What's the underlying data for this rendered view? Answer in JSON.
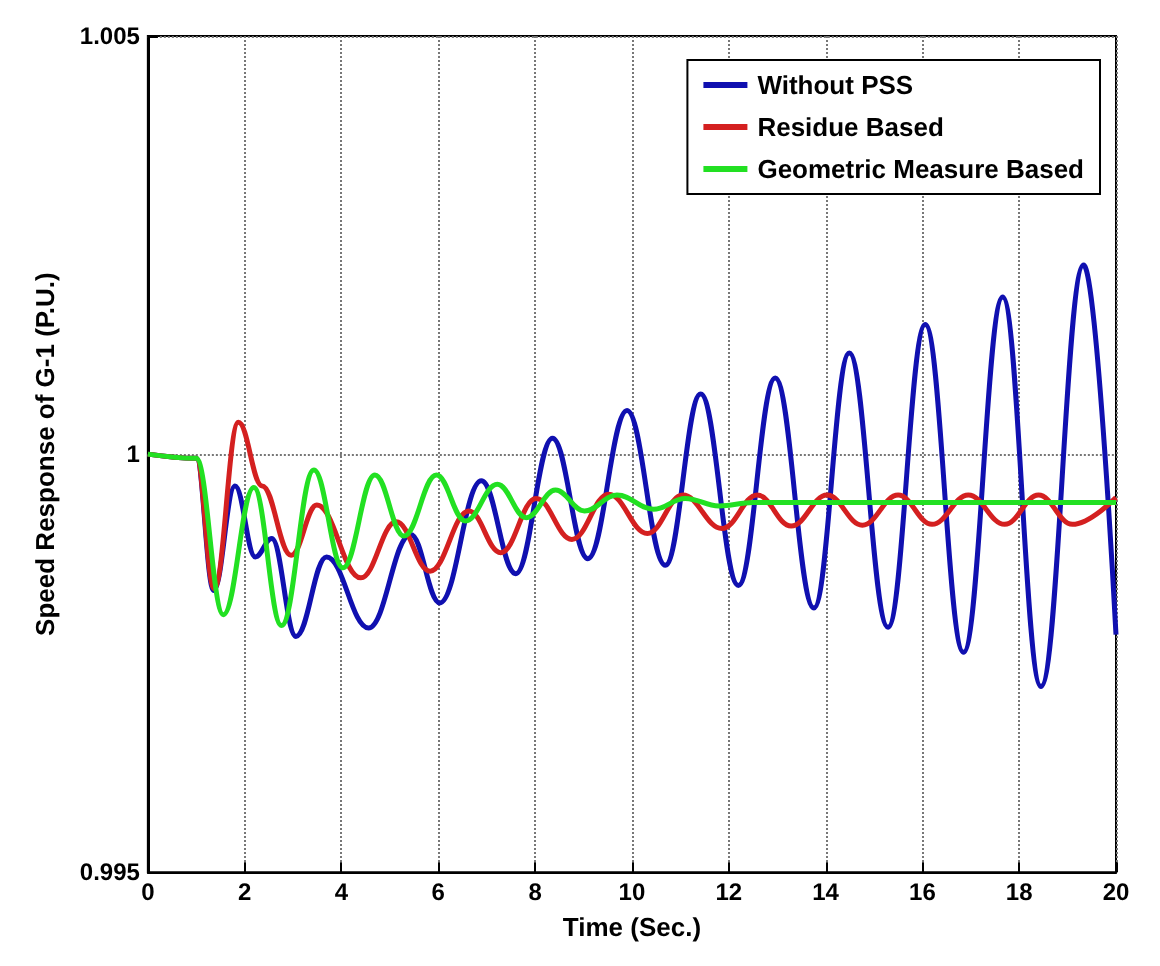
{
  "chart_data": {
    "type": "line",
    "xlabel": "Time (Sec.)",
    "ylabel": "Speed Response of G-1 (P.U.)",
    "xlim": [
      0,
      20
    ],
    "xticks": [
      0,
      2,
      4,
      6,
      8,
      10,
      12,
      14,
      16,
      18,
      20
    ],
    "ylim": [
      0.995,
      1.005
    ],
    "yticks": [
      0.995,
      1,
      1.005
    ],
    "grid": true,
    "legend": "top right",
    "marker": "none",
    "line_style": "solid",
    "series": [
      {
        "name": "Without PSS",
        "color": "#1010b0",
        "x": [
          0,
          1,
          1.36,
          1.8,
          2.22,
          2.56,
          3.06,
          3.69,
          4.56,
          5.43,
          6.03,
          6.89,
          7.6,
          8.36,
          9.09,
          9.9,
          10.69,
          11.42,
          12.2,
          12.96,
          13.76,
          14.49,
          15.29,
          16.06,
          16.85,
          17.66,
          18.45,
          19.33,
          20
        ],
        "values": [
          1,
          0.99995,
          0.99837,
          0.99962,
          0.99877,
          0.99899,
          0.99782,
          0.99877,
          0.99792,
          0.99904,
          0.99822,
          0.99968,
          0.99857,
          1.00019,
          0.99875,
          1.00052,
          0.99867,
          1.00072,
          0.99843,
          1.00091,
          0.99816,
          1.00121,
          0.99793,
          1.00155,
          0.99763,
          1.00188,
          0.99722,
          1.00226,
          0.99784
        ]
      },
      {
        "name": "Residue Based",
        "color": "#d42020",
        "x": [
          0,
          1,
          1.37,
          1.87,
          2.36,
          2.96,
          3.49,
          4.4,
          5.13,
          5.83,
          6.63,
          7.29,
          8.02,
          8.76,
          9.52,
          10.32,
          11.05,
          11.86,
          12.59,
          13.29,
          14.03,
          14.76,
          15.5,
          16.2,
          16.95,
          17.7,
          18.4,
          19.1,
          20
        ],
        "values": [
          1,
          0.99995,
          0.99839,
          1.00038,
          0.99962,
          0.99879,
          0.99939,
          0.99852,
          0.99919,
          0.9986,
          0.99932,
          0.99882,
          0.99947,
          0.99898,
          0.99952,
          0.99905,
          0.99951,
          0.99911,
          0.99951,
          0.99914,
          0.99951,
          0.99915,
          0.99951,
          0.99916,
          0.99951,
          0.99916,
          0.99951,
          0.99916,
          0.99948
        ]
      },
      {
        "name": "Geometric Measure Based",
        "color": "#22e022",
        "x": [
          0,
          1,
          1.56,
          2.19,
          2.76,
          3.43,
          4.03,
          4.69,
          5.29,
          5.96,
          6.56,
          7.22,
          7.82,
          8.42,
          9.02,
          9.69,
          10.45,
          11.1,
          11.8,
          12.5,
          20
        ],
        "values": [
          1,
          0.99995,
          0.99808,
          0.9996,
          0.99795,
          0.99981,
          0.99864,
          0.99975,
          0.99902,
          0.99975,
          0.9992,
          0.99964,
          0.99924,
          0.99957,
          0.99932,
          0.99951,
          0.99934,
          0.99947,
          0.99938,
          0.99942,
          0.99942
        ]
      }
    ]
  }
}
